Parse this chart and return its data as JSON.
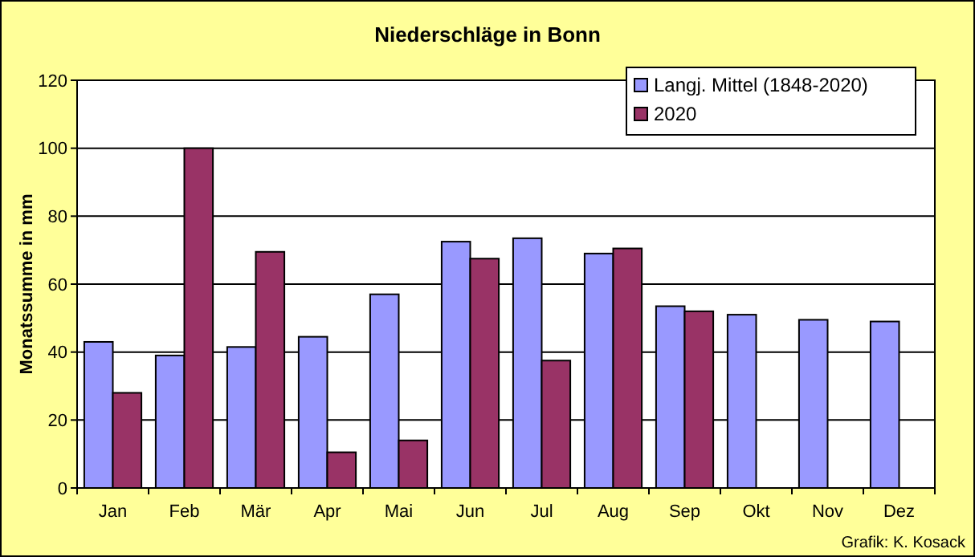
{
  "chart_data": {
    "type": "bar",
    "title": "Niederschläge in Bonn",
    "ylabel": "Monatssumme in mm",
    "categories": [
      "Jan",
      "Feb",
      "Mär",
      "Apr",
      "Mai",
      "Jun",
      "Jul",
      "Aug",
      "Sep",
      "Okt",
      "Nov",
      "Dez"
    ],
    "series": [
      {
        "name": "Langj. Mittel (1848-2020)",
        "color": "#9999ff",
        "values": [
          43,
          39,
          41.5,
          44.5,
          57,
          72.5,
          73.5,
          69,
          53.5,
          51,
          49.5,
          49
        ]
      },
      {
        "name": "2020",
        "color": "#993366",
        "values": [
          28,
          100,
          69.5,
          10.5,
          14,
          67.5,
          37.5,
          70.5,
          52,
          null,
          null,
          null
        ]
      }
    ],
    "ylim": [
      0,
      120
    ],
    "yticks": [
      0,
      20,
      40,
      60,
      80,
      100,
      120
    ],
    "grid": "y",
    "legend": "top right",
    "annotations": [
      "Grafik: K. Kosack"
    ]
  }
}
